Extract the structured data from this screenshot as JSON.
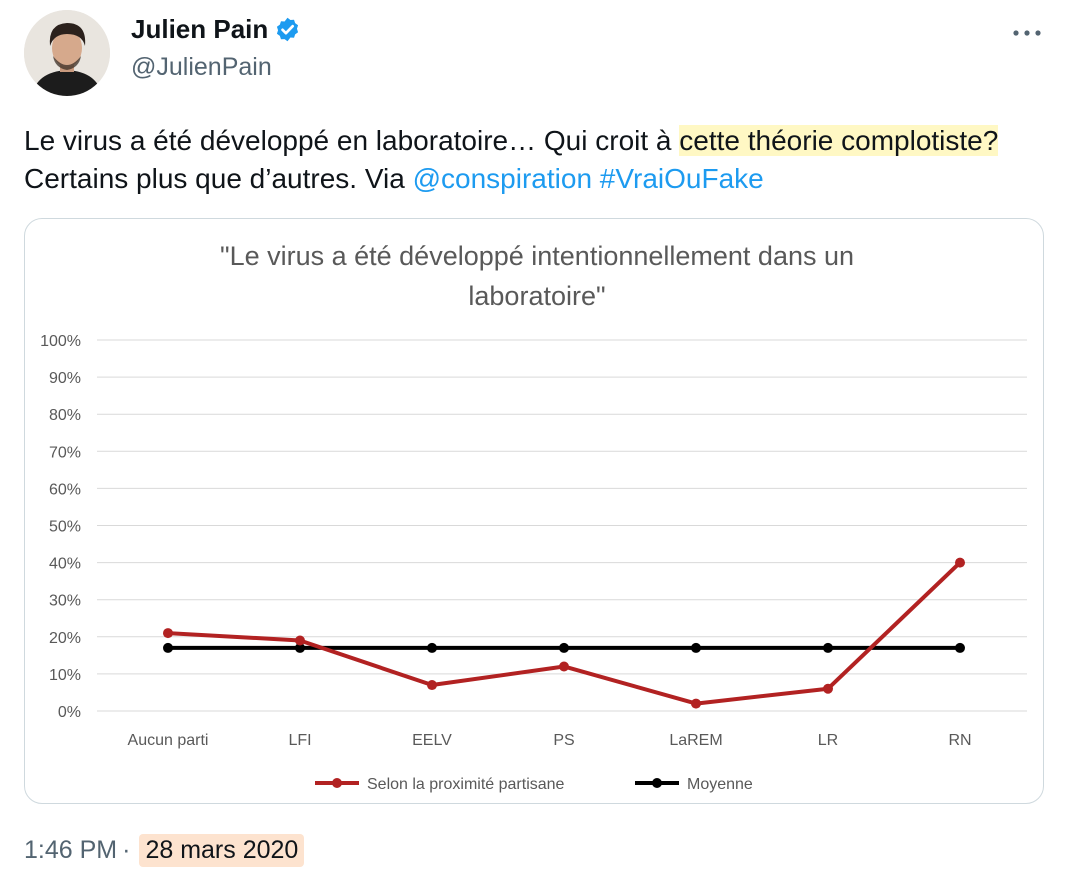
{
  "author": {
    "name": "Julien Pain",
    "handle": "@JulienPain",
    "avatar_icon": "person-photo-icon",
    "verified_icon": "verified-badge-icon",
    "verified_color": "#1d9bf0"
  },
  "more_icon": "more-dots-icon",
  "tweet": {
    "part1": "Le virus a été développé en laboratoire… Qui croit à ",
    "highlight": "cette théorie complotiste?",
    "part2": " Certains plus que d’autres. Via ",
    "mention": "@conspiration",
    "hashtag": "#VraiOuFake",
    "highlight_color": "#fff8c4",
    "link_color": "#1d9bf0"
  },
  "chart_data": {
    "type": "line",
    "title_lines": [
      "\"Le virus a été développé intentionnellement dans un",
      "laboratoire\""
    ],
    "categories": [
      "Aucun parti",
      "LFI",
      "EELV",
      "PS",
      "LaREM",
      "LR",
      "RN"
    ],
    "series": [
      {
        "name": "Selon la proximité partisane",
        "values": [
          21,
          19,
          7,
          12,
          2,
          6,
          40
        ],
        "color": "#b22222"
      },
      {
        "name": "Moyenne",
        "values": [
          17,
          17,
          17,
          17,
          17,
          17,
          17
        ],
        "color": "#000000"
      }
    ],
    "yticks": [
      "0%",
      "10%",
      "20%",
      "30%",
      "40%",
      "50%",
      "60%",
      "70%",
      "80%",
      "90%",
      "100%"
    ],
    "ylim": [
      0,
      100
    ],
    "grid": true,
    "legend_position": "bottom"
  },
  "footer": {
    "time": "1:46 PM",
    "separator": "·",
    "date": "28 mars 2020",
    "date_highlight_color": "#fde3cf"
  }
}
